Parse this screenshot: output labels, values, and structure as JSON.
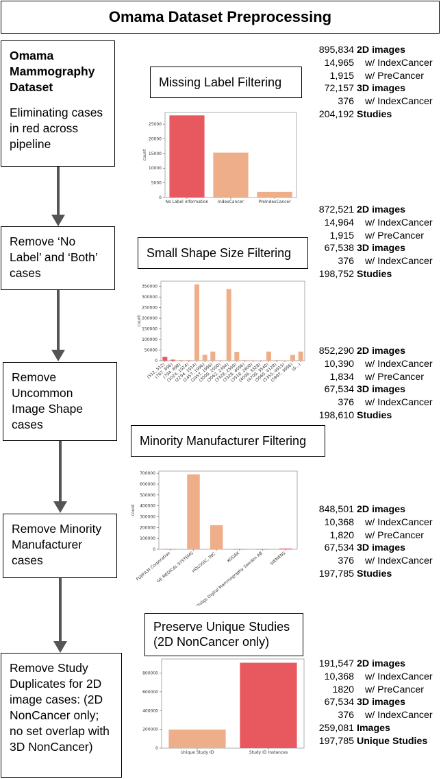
{
  "title": "Omama Dataset Preprocessing",
  "steps": {
    "s1": {
      "header": "Omama Mammography Dataset",
      "body": "Eliminating cases in red across pipeline"
    },
    "s2": {
      "body": "Remove ‘No Label’ and ‘Both’ cases"
    },
    "s3": {
      "body": "Remove Uncommon Image Shape cases"
    },
    "s4": {
      "body": "Remove Minority Manufacturer cases"
    },
    "s5": {
      "body": "Remove Study Duplicates for 2D image cases: (2D NonCancer only; no set overlap with 3D NonCancer)"
    }
  },
  "filters": {
    "f1": "Missing Label Filtering",
    "f2": "Small Shape Size Filtering",
    "f3": "Minority Manufacturer Filtering",
    "f4": "Preserve Unique Studies (2D NonCancer only)"
  },
  "stats": [
    [
      {
        "num": "895,834",
        "label": "2D images",
        "bold": true
      },
      {
        "num": "14,965",
        "label": "w/ IndexCancer",
        "bold": false
      },
      {
        "num": "1,915",
        "label": "w/ PreCancer",
        "bold": false
      },
      {
        "num": "72,157",
        "label": "3D images",
        "bold": true
      },
      {
        "num": "376",
        "label": "w/ IndexCancer",
        "bold": false
      },
      {
        "num": "204,192",
        "label": "Studies",
        "bold": true
      }
    ],
    [
      {
        "num": "872,521",
        "label": "2D images",
        "bold": true
      },
      {
        "num": "14,964",
        "label": "w/ IndexCancer",
        "bold": false
      },
      {
        "num": "1,915",
        "label": "w/ PreCancer",
        "bold": false
      },
      {
        "num": "67,538",
        "label": "3D images",
        "bold": true
      },
      {
        "num": "376",
        "label": "w/ IndexCancer",
        "bold": false
      },
      {
        "num": "198,752",
        "label": "Studies",
        "bold": true
      }
    ],
    [
      {
        "num": "852,290",
        "label": "2D images",
        "bold": true
      },
      {
        "num": "10,390",
        "label": "w/ IndexCancer",
        "bold": false
      },
      {
        "num": "1,834",
        "label": "w/ PreCancer",
        "bold": false
      },
      {
        "num": "67,534",
        "label": "3D images",
        "bold": true
      },
      {
        "num": "376",
        "label": "w/ IndexCancer",
        "bold": false
      },
      {
        "num": "198,610",
        "label": "Studies",
        "bold": true
      }
    ],
    [
      {
        "num": "848,501",
        "label": "2D images",
        "bold": true
      },
      {
        "num": "10,368",
        "label": "w/ IndexCancer",
        "bold": false
      },
      {
        "num": "1,820",
        "label": "w/ PreCancer",
        "bold": false
      },
      {
        "num": "67,534",
        "label": "3D images",
        "bold": true
      },
      {
        "num": "376",
        "label": "w/ IndexCancer",
        "bold": false
      },
      {
        "num": "197,785",
        "label": "Studies",
        "bold": true
      }
    ],
    [
      {
        "num": "191,547",
        "label": "2D images",
        "bold": true
      },
      {
        "num": "10,368",
        "label": "w/ IndexCancer",
        "bold": false
      },
      {
        "num": "1820",
        "label": "w/ PreCancer",
        "bold": false
      },
      {
        "num": "67,534",
        "label": "3D images",
        "bold": true
      },
      {
        "num": "376",
        "label": "w/ IndexCancer",
        "bold": false
      },
      {
        "num": "259,081",
        "label": "Images",
        "bold": true
      },
      {
        "num": "197,785",
        "label": "Unique Studies",
        "bold": true
      }
    ]
  ],
  "chart_data": [
    {
      "type": "bar",
      "ylabel": "count",
      "categories": [
        "No Label information",
        "IndexCancer",
        "PreIndexCancer"
      ],
      "values": [
        28000,
        15300,
        1900
      ],
      "colors": [
        "#e8595f",
        "#eeae8a",
        "#eeae8a"
      ],
      "ylim": [
        0,
        29000
      ],
      "yticks": [
        0,
        5000,
        10000,
        15000,
        20000,
        25000
      ]
    },
    {
      "type": "bar",
      "ylabel": "count",
      "categories": [
        "(512, 512)",
        "(767, 896)",
        "(794, 898)",
        "(1024, 1024)",
        "(2294, 1914)",
        "(2457, 1996)",
        "(2457, 1996)",
        "(3000, 2000)",
        "(3062, 2394)",
        "(3328, 2560)",
        "(3328, 4096)",
        "(3518, 2800)",
        "(4096, 3328)",
        "(4700, 3540)",
        "(5060, 4128)",
        "(5355, 4915)",
        "(5997, 3996)",
        "(6...)"
      ],
      "values": [
        18000,
        5000,
        3000,
        3000,
        360000,
        28000,
        43000,
        2000,
        338000,
        42000,
        3000,
        2000,
        2000,
        43000,
        3000,
        2000,
        27000,
        43000
      ],
      "colors": [
        "#e8595f",
        "#e8595f",
        "#eeae8a",
        "#eeae8a",
        "#eeae8a",
        "#eeae8a",
        "#eeae8a",
        "#eeae8a",
        "#eeae8a",
        "#eeae8a",
        "#eeae8a",
        "#eeae8a",
        "#eeae8a",
        "#eeae8a",
        "#eeae8a",
        "#eeae8a",
        "#eeae8a",
        "#eeae8a"
      ],
      "ylim": [
        0,
        375000
      ],
      "yticks": [
        0,
        50000,
        100000,
        150000,
        200000,
        250000,
        300000,
        350000
      ]
    },
    {
      "type": "bar",
      "ylabel": "count",
      "categories": [
        "FUJIFILM Corporation",
        "GE MEDICAL SYSTEMS",
        "HOLOGIC, INC.",
        "KODAK",
        "Philips Digital Mammography Sweden AB",
        "SIEMENS"
      ],
      "values": [
        1500,
        690000,
        222000,
        1000,
        800,
        7000
      ],
      "colors": [
        "#e8595f",
        "#eeae8a",
        "#eeae8a",
        "#e8595f",
        "#e8595f",
        "#e8595f"
      ],
      "ylim": [
        0,
        720000
      ],
      "yticks": [
        0,
        100000,
        200000,
        300000,
        400000,
        500000,
        600000,
        700000
      ]
    },
    {
      "type": "bar",
      "categories": [
        "Unique Study ID",
        "Study ID Instances"
      ],
      "values": [
        198000,
        910000
      ],
      "colors": [
        "#eeae8a",
        "#e8595f"
      ],
      "ylim": [
        0,
        950000
      ],
      "yticks": [
        0,
        200000,
        400000,
        600000,
        800000
      ]
    }
  ]
}
